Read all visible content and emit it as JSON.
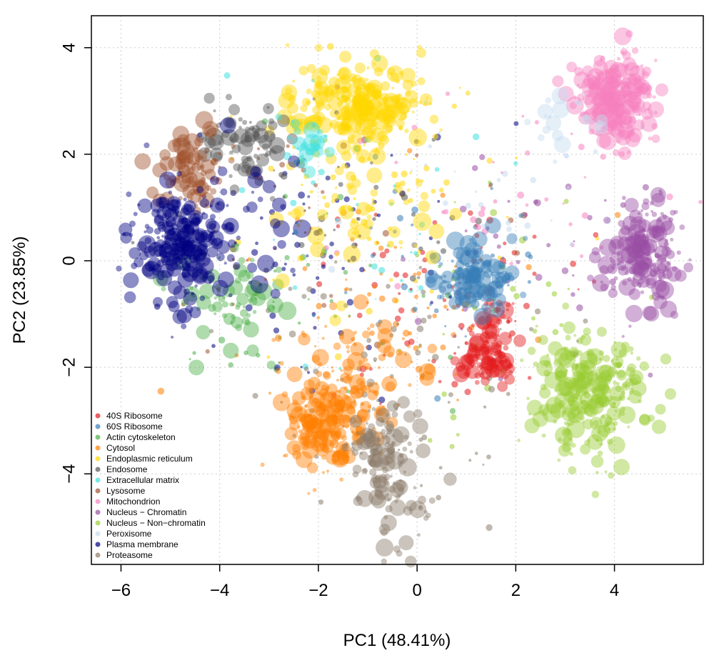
{
  "chart_data": {
    "type": "scatter",
    "xlabel": "PC1 (48.41%)",
    "ylabel": "PC2 (23.85%)",
    "xlim": [
      -6.6,
      5.8
    ],
    "ylim": [
      -5.7,
      4.6
    ],
    "xticks": [
      -6,
      -4,
      -2,
      0,
      2,
      4
    ],
    "yticks": [
      -4,
      -2,
      0,
      2,
      4
    ],
    "xtick_labels": [
      "−6",
      "−4",
      "−2",
      "0",
      "2",
      "4"
    ],
    "ytick_labels": [
      "−4",
      "−2",
      "0",
      "2",
      "4"
    ],
    "grid": true,
    "legend_position": "bottom-left",
    "series": [
      {
        "name": "40S Ribosome",
        "color": "#e41a1c",
        "clusters": [
          {
            "cx": 1.4,
            "cy": -1.75,
            "sx": 0.3,
            "sy": 0.25,
            "n": 90
          },
          {
            "cx": 1.6,
            "cy": -1.0,
            "sx": 0.25,
            "sy": 0.2,
            "n": 25
          }
        ]
      },
      {
        "name": "60S Ribosome",
        "color": "#377eb8",
        "clusters": [
          {
            "cx": 1.2,
            "cy": -0.3,
            "sx": 0.4,
            "sy": 0.3,
            "n": 120
          }
        ]
      },
      {
        "name": "Actin cytoskeleton",
        "color": "#4daf4a",
        "clusters": [
          {
            "cx": -3.8,
            "cy": -0.8,
            "sx": 0.6,
            "sy": 0.45,
            "n": 70
          }
        ]
      },
      {
        "name": "Cytosol",
        "color": "#ff7f00",
        "clusters": [
          {
            "cx": -1.8,
            "cy": -3.0,
            "sx": 0.45,
            "sy": 0.45,
            "n": 200
          },
          {
            "cx": -1.2,
            "cy": -1.8,
            "sx": 0.8,
            "sy": 0.5,
            "n": 60
          }
        ]
      },
      {
        "name": "Endoplasmic reticulum",
        "color": "#ffd700",
        "clusters": [
          {
            "cx": -1.2,
            "cy": 2.9,
            "sx": 0.7,
            "sy": 0.4,
            "n": 240
          },
          {
            "cx": -1.0,
            "cy": 1.0,
            "sx": 1.0,
            "sy": 0.8,
            "n": 60
          }
        ]
      },
      {
        "name": "Endosome",
        "color": "#555555",
        "clusters": [
          {
            "cx": -3.5,
            "cy": 2.2,
            "sx": 0.5,
            "sy": 0.4,
            "n": 80
          }
        ]
      },
      {
        "name": "Extracellular matrix",
        "color": "#40e0e0",
        "clusters": [
          {
            "cx": -2.2,
            "cy": 2.2,
            "sx": 0.35,
            "sy": 0.25,
            "n": 30
          }
        ]
      },
      {
        "name": "Lysosome",
        "color": "#a0522d",
        "clusters": [
          {
            "cx": -4.6,
            "cy": 1.7,
            "sx": 0.3,
            "sy": 0.35,
            "n": 90
          }
        ]
      },
      {
        "name": "Mitochondrion",
        "color": "#f781bf",
        "clusters": [
          {
            "cx": 4.0,
            "cy": 3.0,
            "sx": 0.4,
            "sy": 0.4,
            "n": 260
          }
        ]
      },
      {
        "name": "Nucleus − Chromatin",
        "color": "#984ea3",
        "clusters": [
          {
            "cx": 4.6,
            "cy": 0.1,
            "sx": 0.35,
            "sy": 0.5,
            "n": 180
          }
        ]
      },
      {
        "name": "Nucleus − Non−chromatin",
        "color": "#9acd32",
        "clusters": [
          {
            "cx": 3.5,
            "cy": -2.5,
            "sx": 0.55,
            "sy": 0.55,
            "n": 260
          }
        ]
      },
      {
        "name": "Peroxisome",
        "color": "#c6dbef",
        "clusters": [
          {
            "cx": 3.0,
            "cy": 2.6,
            "sx": 0.4,
            "sy": 0.4,
            "n": 25
          }
        ]
      },
      {
        "name": "Plasma membrane",
        "color": "#000080",
        "clusters": [
          {
            "cx": -4.8,
            "cy": 0.3,
            "sx": 0.45,
            "sy": 0.55,
            "n": 240
          },
          {
            "cx": -3.5,
            "cy": 0.8,
            "sx": 0.7,
            "sy": 0.8,
            "n": 40
          }
        ]
      },
      {
        "name": "Proteasome",
        "color": "#8b7d6b",
        "clusters": [
          {
            "cx": -0.7,
            "cy": -3.6,
            "sx": 0.35,
            "sy": 0.45,
            "n": 110
          },
          {
            "cx": -0.2,
            "cy": -4.6,
            "sx": 0.35,
            "sy": 0.4,
            "n": 30
          }
        ]
      }
    ],
    "scatter_background": {
      "n": 700,
      "spread_x": 3.0,
      "spread_y": 2.2
    }
  }
}
